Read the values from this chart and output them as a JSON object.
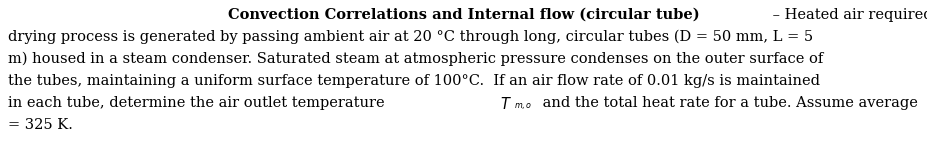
{
  "background_color": "#ffffff",
  "bold_part": "Convection Correlations and Internal flow (circular tube)",
  "dash": " – Heated air required for a food-",
  "line2": "drying process is generated by passing ambient air at 20 °C through long, circular tubes (D = 50 mm, L = 5",
  "line3": "m) housed in a steam condenser. Saturated steam at atmospheric pressure condenses on the outer surface of",
  "line4": "the tubes, maintaining a uniform surface temperature of 100°C.  If an air flow rate of 0.01 kg/s is maintained",
  "line5_pre": "in each tube, determine the air outlet temperature ",
  "line5_mid": " and the total heat rate for a tube. Assume average ",
  "line6": "= 325 K.",
  "font_size": 10.5,
  "font_family": "DejaVu Serif",
  "text_color": "#000000"
}
